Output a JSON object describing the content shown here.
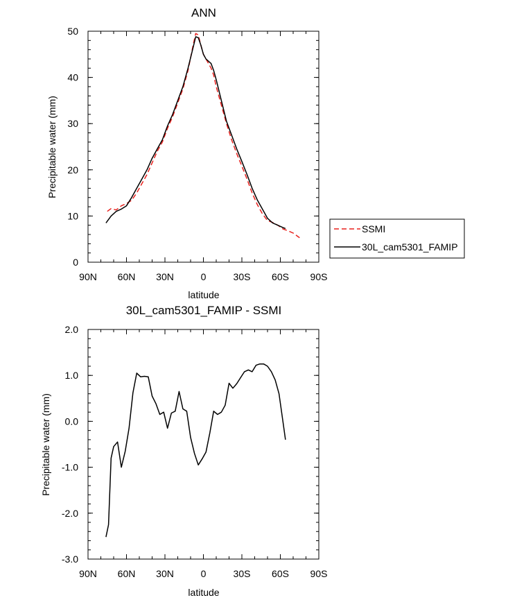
{
  "chart_data": [
    {
      "type": "line",
      "title": "ANN",
      "xlabel": "latitude",
      "ylabel": "Precipitable water (mm)",
      "xlim": [
        90,
        -90
      ],
      "ylim": [
        0,
        50
      ],
      "xticks": [
        90,
        60,
        30,
        0,
        -30,
        -60,
        -90
      ],
      "xtick_labels": [
        "90N",
        "60N",
        "30N",
        "0",
        "30S",
        "60S",
        "90S"
      ],
      "yticks": [
        0,
        10,
        20,
        30,
        40,
        50
      ],
      "ytick_labels": [
        "0",
        "10",
        "20",
        "30",
        "40",
        "50"
      ],
      "legend": {
        "placement": "right"
      },
      "series": [
        {
          "name": "SSMI",
          "color": "#e8201c",
          "dash": "dashed",
          "x": [
            75,
            72,
            68,
            64,
            60,
            56,
            52,
            48,
            44,
            40,
            36,
            32,
            28,
            24,
            20,
            16,
            12,
            8,
            6,
            4,
            2,
            0,
            -2,
            -4,
            -6,
            -8,
            -10,
            -14,
            -18,
            -22,
            -26,
            -30,
            -34,
            -38,
            -42,
            -46,
            -50,
            -54,
            -58,
            -62,
            -66,
            -70,
            -74,
            -75
          ],
          "values": [
            11.0,
            11.6,
            11.3,
            12.2,
            12.7,
            13.4,
            15.0,
            17.0,
            19.0,
            21.5,
            24.0,
            26.0,
            29.0,
            31.5,
            34.5,
            37.5,
            41.5,
            47.0,
            49.5,
            49.2,
            47.0,
            45.0,
            44.0,
            43.0,
            42.0,
            40.5,
            38.0,
            34.0,
            30.0,
            26.5,
            23.5,
            20.8,
            18.0,
            15.0,
            12.5,
            10.5,
            9.0,
            8.6,
            8.0,
            7.2,
            6.8,
            6.3,
            5.5,
            5.3
          ]
        },
        {
          "name": "30L_cam5301_FAMIP",
          "color": "#000000",
          "dash": "solid",
          "x": [
            76,
            72,
            68,
            64,
            60,
            56,
            52,
            48,
            44,
            40,
            36,
            32,
            28,
            24,
            20,
            16,
            12,
            8,
            6,
            4,
            2,
            0,
            -2,
            -4,
            -6,
            -8,
            -10,
            -14,
            -18,
            -22,
            -26,
            -30,
            -34,
            -38,
            -42,
            -46,
            -50,
            -54,
            -58,
            -62,
            -64
          ],
          "values": [
            8.5,
            10.0,
            11.0,
            11.5,
            12.2,
            14.0,
            16.0,
            18.0,
            20.0,
            22.5,
            24.5,
            26.5,
            29.5,
            32.0,
            35.0,
            38.0,
            42.0,
            46.5,
            48.8,
            48.6,
            47.0,
            45.0,
            44.0,
            43.5,
            43.0,
            41.5,
            39.5,
            35.0,
            30.5,
            27.5,
            24.5,
            21.8,
            19.0,
            16.0,
            13.5,
            11.5,
            9.5,
            8.5,
            8.0,
            7.5,
            7.3
          ]
        }
      ]
    },
    {
      "type": "line",
      "title": "30L_cam5301_FAMIP - SSMI",
      "xlabel": "latitude",
      "ylabel": "Precipitable water (mm)",
      "xlim": [
        90,
        -90
      ],
      "ylim": [
        -3,
        2
      ],
      "xticks": [
        90,
        60,
        30,
        0,
        -30,
        -60,
        -90
      ],
      "xtick_labels": [
        "90N",
        "60N",
        "30N",
        "0",
        "30S",
        "60S",
        "90S"
      ],
      "yticks": [
        -3,
        -2,
        -1,
        0,
        1,
        2
      ],
      "ytick_labels": [
        "-3.0",
        "-2.0",
        "-1.0",
        "0.0",
        "1.0",
        "2.0"
      ],
      "series": [
        {
          "color": "#000000",
          "dash": "solid",
          "x": [
            76,
            74,
            72,
            70,
            67,
            64,
            61,
            58,
            55,
            52,
            49,
            46,
            43,
            40,
            37,
            34,
            31,
            28,
            25,
            22,
            19,
            16,
            13,
            10,
            7,
            4,
            1,
            -2,
            -5,
            -8,
            -11,
            -14,
            -17,
            -20,
            -23,
            -26,
            -29,
            -32,
            -35,
            -38,
            -41,
            -44,
            -47,
            -50,
            -53,
            -56,
            -59,
            -62,
            -64
          ],
          "values": [
            -2.52,
            -2.25,
            -0.8,
            -0.55,
            -0.45,
            -1.0,
            -0.65,
            -0.15,
            0.62,
            1.05,
            0.97,
            0.98,
            0.97,
            0.55,
            0.38,
            0.15,
            0.2,
            -0.15,
            0.18,
            0.22,
            0.65,
            0.27,
            0.22,
            -0.35,
            -0.7,
            -0.95,
            -0.82,
            -0.67,
            -0.25,
            0.22,
            0.15,
            0.2,
            0.35,
            0.83,
            0.72,
            0.82,
            0.95,
            1.08,
            1.12,
            1.08,
            1.22,
            1.25,
            1.25,
            1.2,
            1.08,
            0.9,
            0.6,
            0.0,
            -0.4
          ]
        }
      ]
    }
  ]
}
